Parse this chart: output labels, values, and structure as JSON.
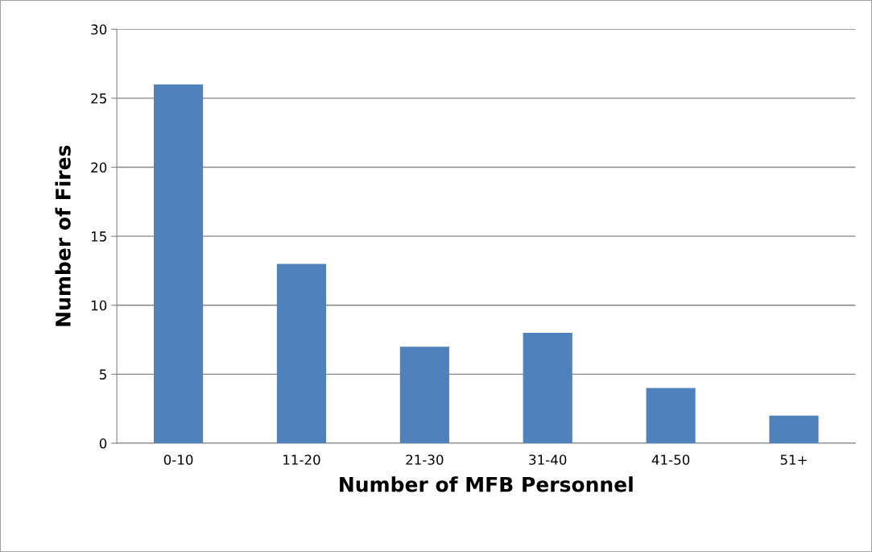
{
  "chart_data": {
    "type": "bar",
    "xlabel": "Number of MFB Personnel",
    "ylabel": "Number of Fires",
    "categories": [
      "0-10",
      "11-20",
      "21-30",
      "31-40",
      "41-50",
      "51+"
    ],
    "values": [
      26,
      13,
      7,
      8,
      4,
      2
    ],
    "color": "#4f81bd",
    "ylim": [
      0,
      30
    ],
    "yticks": [
      0,
      5,
      10,
      15,
      20,
      25,
      30
    ],
    "grid": "y",
    "legend": false
  }
}
